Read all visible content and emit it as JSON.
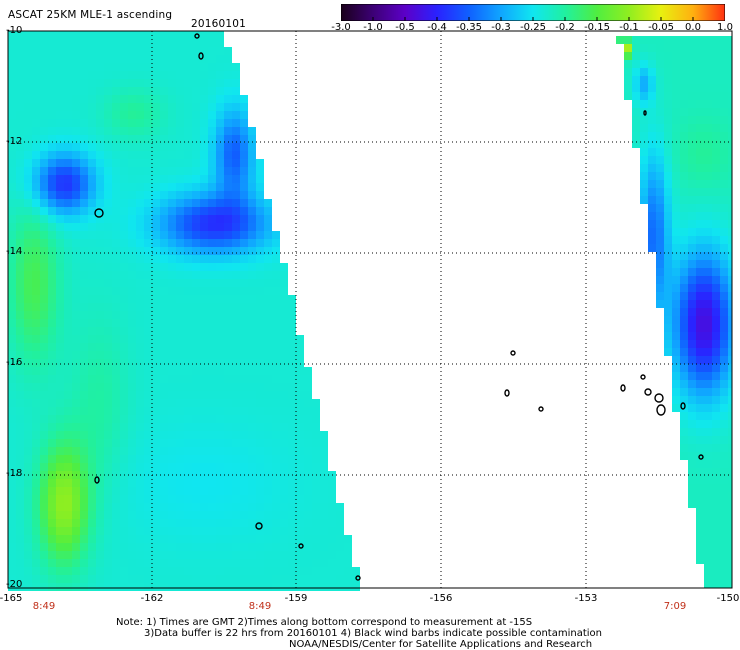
{
  "header": {
    "title": "ASCAT 25KM MLE-1 ascending",
    "date": "20160101"
  },
  "colorbar": {
    "labels": [
      "-3.0",
      "-1.0",
      "-0.5",
      "-0.4",
      "-0.35",
      "-0.3",
      "-0.25",
      "-0.2",
      "-0.15",
      "-0.1",
      "-0.05",
      "0.0",
      "1.0"
    ],
    "colors": [
      "#1a001a",
      "#3c0075",
      "#5c00c8",
      "#2a22ff",
      "#1060ff",
      "#10a6ff",
      "#10e6f0",
      "#20f0a0",
      "#50ee40",
      "#90ee20",
      "#e8f010",
      "#ffb010",
      "#ff3010"
    ]
  },
  "axes": {
    "y_ticks": [
      "-10",
      "-12",
      "-14",
      "-16",
      "-18",
      "-20"
    ],
    "x_ticks": [
      "-165",
      "-162",
      "-159",
      "-156",
      "-153",
      "-150"
    ]
  },
  "pass_times": [
    "8:49",
    "8:49",
    "7:09"
  ],
  "notes": [
    "Note: 1) Times are GMT 2)Times along bottom correspond to measurement at -15S",
    "3)Data buffer is 22 hrs from 20160101 4) Black wind barbs indicate possible contamination",
    "NOAA/NESDIS/Center for Satellite Applications and Research"
  ],
  "colors": {
    "time_label": "#c0301a",
    "grid": "#000000",
    "no_data": "#ffffff"
  }
}
